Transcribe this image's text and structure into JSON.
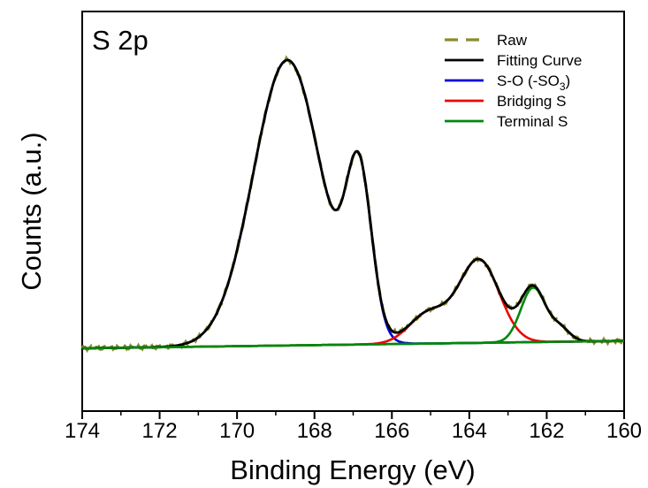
{
  "chart_data": {
    "type": "line",
    "panel_label": "S 2p",
    "xlabel": "Binding Energy (eV)",
    "ylabel": "Counts (a.u.)",
    "xlim": [
      174,
      160
    ],
    "x_reversed": true,
    "x_ticks": [
      174,
      172,
      170,
      168,
      166,
      164,
      162,
      160
    ],
    "ylim": [
      -0.22,
      1.18
    ],
    "y_ticks_shown": false,
    "grid": false,
    "legend_position": "top-right",
    "legend": [
      {
        "label": "Raw",
        "color": "#8B8B2E",
        "dash": true
      },
      {
        "label": "Fitting Curve",
        "color": "#000000",
        "dash": false
      },
      {
        "label_main": "S-O (-SO",
        "label_sub": "3",
        "label_end": ")",
        "color": "#0000DD",
        "dash": false
      },
      {
        "label": "Bridging S",
        "color": "#EE0000",
        "dash": false
      },
      {
        "label": "Terminal S",
        "color": "#00870A",
        "dash": false
      }
    ],
    "baseline": {
      "start": 0.0,
      "slope": 0.00186
    },
    "components": {
      "S-O (-SO3)": [
        {
          "center": 168.7,
          "amplitude": 1.0,
          "sigma": 0.88
        },
        {
          "center": 166.85,
          "amplitude": 0.56,
          "sigma": 0.33
        }
      ],
      "Bridging S": [
        {
          "center": 165.05,
          "amplitude": 0.105,
          "sigma": 0.5
        },
        {
          "center": 163.75,
          "amplitude": 0.29,
          "sigma": 0.52
        }
      ],
      "Terminal S": [
        {
          "center": 162.35,
          "amplitude": 0.19,
          "sigma": 0.32
        },
        {
          "center": 161.65,
          "amplitude": 0.045,
          "sigma": 0.25
        }
      ]
    },
    "series_colors": {
      "Raw": "#8B8B2E",
      "Fitting Curve": "#000000",
      "S-O (-SO3)": "#0000DD",
      "Bridging S": "#EE0000",
      "Terminal S": "#00870A"
    }
  }
}
